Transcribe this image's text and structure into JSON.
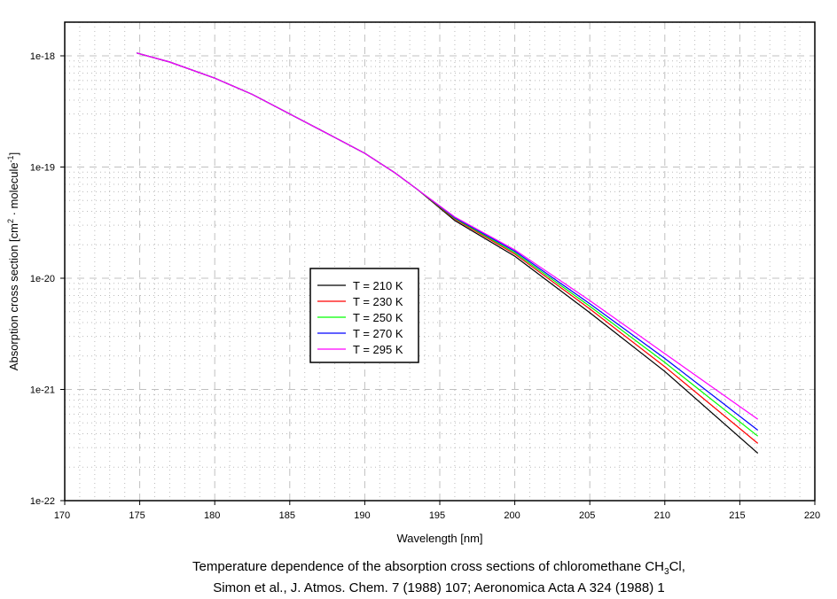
{
  "chart_data": {
    "type": "line",
    "xlabel": "Wavelength [nm]",
    "ylabel_parts": [
      "Absorption cross section [cm",
      "2",
      " · molecule",
      "-1",
      "]"
    ],
    "xlim": [
      170,
      220
    ],
    "ylim": [
      1e-22,
      2e-18
    ],
    "yscale": "log",
    "x_ticks": [
      "170",
      "175",
      "180",
      "185",
      "190",
      "195",
      "200",
      "205",
      "210",
      "215",
      "220"
    ],
    "y_ticks": [
      {
        "label": "1e-18",
        "value": 1e-18
      },
      {
        "label": "1e-19",
        "value": 1e-19
      },
      {
        "label": "1e-20",
        "value": 1e-20
      },
      {
        "label": "1e-21",
        "value": 1e-21
      },
      {
        "label": "1e-22",
        "value": 1e-22
      }
    ],
    "grid": true,
    "legend_position": "center-left",
    "caption_line1_parts": [
      "Temperature dependence of the absorption cross sections of chloromethane CH",
      "3",
      "Cl,"
    ],
    "caption_line2": "Simon et al., J. Atmos. Chem. 7 (1988) 107; Aeronomica Acta A 324 (1988) 1",
    "common_x": [
      174.8,
      177,
      180,
      182.5,
      185,
      187.5,
      190,
      192,
      193.5
    ],
    "common_y": [
      1.06e-18,
      8.8e-19,
      6.3e-19,
      4.5e-19,
      3e-19,
      2e-19,
      1.33e-19,
      8.9e-20,
      6.3e-20
    ],
    "x": [
      196,
      200,
      205,
      210,
      216.2
    ],
    "series": [
      {
        "name": "T = 210 K",
        "color": "#000000",
        "values": [
          3.3e-20,
          1.58e-20,
          4.9e-21,
          1.45e-21,
          2.67e-22
        ]
      },
      {
        "name": "T = 230 K",
        "color": "#ff0000",
        "values": [
          3.4e-20,
          1.65e-20,
          5.3e-21,
          1.6e-21,
          3.27e-22
        ]
      },
      {
        "name": "T = 250 K",
        "color": "#00ff00",
        "values": [
          3.45e-20,
          1.7e-20,
          5.6e-21,
          1.75e-21,
          3.8e-22
        ]
      },
      {
        "name": "T = 270 K",
        "color": "#0000ff",
        "values": [
          3.5e-20,
          1.75e-20,
          5.9e-21,
          1.9e-21,
          4.3e-22
        ]
      },
      {
        "name": "T = 295 K",
        "color": "#ff00ff",
        "values": [
          3.55e-20,
          1.8e-20,
          6.3e-21,
          2.1e-21,
          5.4e-22
        ]
      }
    ]
  }
}
